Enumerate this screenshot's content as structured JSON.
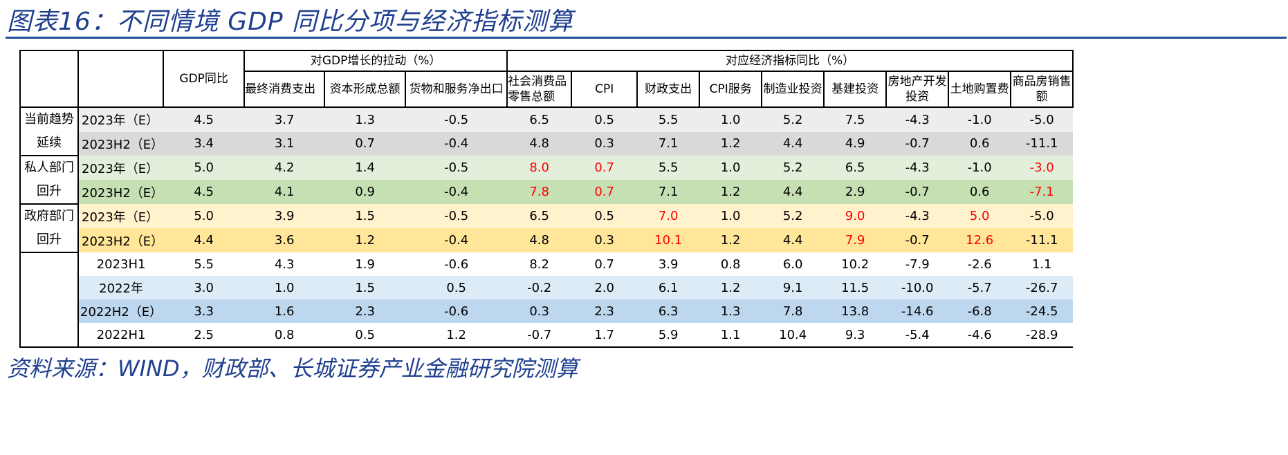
{
  "title": "图表16：不同情境 GDP 同比分项与经济指标测算",
  "source": "资料来源：WIND，财政部、长城证券产业金融研究院测算",
  "header": {
    "gdp": "GDP同比",
    "group1": "对GDP增长的拉动（%）",
    "group2": "对应经济指标同比（%）",
    "cols": [
      "最终消费支出",
      "资本形成总额",
      "货物和服务净出口",
      "社会消费品零售总额",
      "CPI",
      "财政支出",
      "CPI服务",
      "制造业投资",
      "基建投资",
      "房地产开发投资",
      "土地购置费",
      "商品房销售额"
    ]
  },
  "colors": {
    "red": "#FF0000",
    "title": "#1F3F8F"
  },
  "groups": [
    {
      "label": "当前趋势延续"
    },
    {
      "label": "私人部门回升"
    },
    {
      "label": "政府部门回升"
    }
  ],
  "rows": [
    {
      "label": "2023年（E）",
      "bg": "#EDEDED",
      "values": [
        "4.5",
        "3.7",
        "1.3",
        "-0.5",
        "6.5",
        "0.5",
        "5.5",
        "1.0",
        "5.2",
        "7.5",
        "-4.3",
        "-1.0",
        "-5.0"
      ],
      "red": []
    },
    {
      "label": "2023H2（E）",
      "bg": "#D9D9D9",
      "values": [
        "3.4",
        "3.1",
        "0.7",
        "-0.4",
        "4.8",
        "0.3",
        "7.1",
        "1.2",
        "4.4",
        "4.9",
        "-0.7",
        "0.6",
        "-11.1"
      ],
      "red": []
    },
    {
      "label": "2023年（E）",
      "bg": "#E2EFDA",
      "values": [
        "5.0",
        "4.2",
        "1.4",
        "-0.5",
        "8.0",
        "0.7",
        "5.5",
        "1.0",
        "5.2",
        "6.5",
        "-4.3",
        "-1.0",
        "-3.0"
      ],
      "red": [
        4,
        5,
        12
      ]
    },
    {
      "label": "2023H2（E）",
      "bg": "#C6E0B4",
      "values": [
        "4.5",
        "4.1",
        "0.9",
        "-0.4",
        "7.8",
        "0.7",
        "7.1",
        "1.2",
        "4.4",
        "2.9",
        "-0.7",
        "0.6",
        "-7.1"
      ],
      "red": [
        4,
        5,
        12
      ]
    },
    {
      "label": "2023年（E）",
      "bg": "#FFF2CC",
      "values": [
        "5.0",
        "3.9",
        "1.5",
        "-0.5",
        "6.5",
        "0.5",
        "7.0",
        "1.0",
        "5.2",
        "9.0",
        "-4.3",
        "5.0",
        "-5.0"
      ],
      "red": [
        6,
        9,
        11
      ]
    },
    {
      "label": "2023H2（E）",
      "bg": "#FFE699",
      "values": [
        "4.4",
        "3.6",
        "1.2",
        "-0.4",
        "4.8",
        "0.3",
        "10.1",
        "1.2",
        "4.4",
        "7.9",
        "-0.7",
        "12.6",
        "-11.1"
      ],
      "red": [
        6,
        9,
        11
      ]
    },
    {
      "label": "2023H1",
      "bg": "#FFFFFF",
      "values": [
        "5.5",
        "4.3",
        "1.9",
        "-0.6",
        "8.2",
        "0.7",
        "3.9",
        "0.8",
        "6.0",
        "10.2",
        "-7.9",
        "-2.6",
        "1.1"
      ],
      "red": []
    },
    {
      "label": "2022年",
      "bg": "#DDEBF7",
      "values": [
        "3.0",
        "1.0",
        "1.5",
        "0.5",
        "-0.2",
        "2.0",
        "6.1",
        "1.2",
        "9.1",
        "11.5",
        "-10.0",
        "-5.7",
        "-26.7"
      ],
      "red": []
    },
    {
      "label": "2022H2（E）",
      "bg": "#BDD7EE",
      "values": [
        "3.3",
        "1.6",
        "2.3",
        "-0.6",
        "0.3",
        "2.3",
        "6.3",
        "1.3",
        "7.8",
        "13.8",
        "-14.6",
        "-6.8",
        "-24.5"
      ],
      "red": []
    },
    {
      "label": "2022H1",
      "bg": "#FFFFFF",
      "values": [
        "2.5",
        "0.8",
        "0.5",
        "1.2",
        "-0.7",
        "1.7",
        "5.9",
        "1.1",
        "10.4",
        "9.3",
        "-5.4",
        "-4.6",
        "-28.9"
      ],
      "red": []
    }
  ]
}
